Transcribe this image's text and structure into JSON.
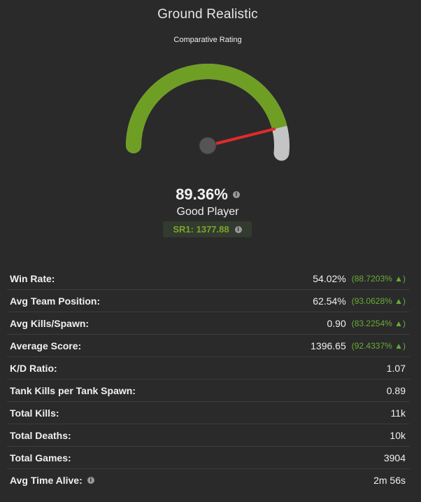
{
  "header": {
    "title": "Ground Realistic",
    "subtitle": "Comparative Rating"
  },
  "gauge": {
    "level": 0.8936,
    "fill_color": "#6f9e25",
    "track_color": "#c4c4c4",
    "needle_color": "#e12a2a",
    "hub_color": "#555555"
  },
  "rating": {
    "percent": "89.36%",
    "label": "Good Player",
    "sr_text": "SR1: 1377.88"
  },
  "stats": [
    {
      "label": "Win Rate:",
      "value": "54.02%",
      "pct": "(88.7203% ▲)"
    },
    {
      "label": "Avg Team Position:",
      "value": "62.54%",
      "pct": "(93.0628% ▲)"
    },
    {
      "label": "Avg Kills/Spawn:",
      "value": "0.90",
      "pct": "(83.2254% ▲)"
    },
    {
      "label": "Average Score:",
      "value": "1396.65",
      "pct": "(92.4337% ▲)"
    },
    {
      "label": "K/D Ratio:",
      "value": "1.07",
      "pct": ""
    },
    {
      "label": "Tank Kills per Tank Spawn:",
      "value": "0.89",
      "pct": ""
    },
    {
      "label": "Total Kills:",
      "value": "11k",
      "pct": ""
    },
    {
      "label": "Total Deaths:",
      "value": "10k",
      "pct": ""
    },
    {
      "label": "Total Games:",
      "value": "3904",
      "pct": ""
    },
    {
      "label": "Avg Time Alive:",
      "value": "2m 56s",
      "pct": "",
      "info": true
    }
  ]
}
